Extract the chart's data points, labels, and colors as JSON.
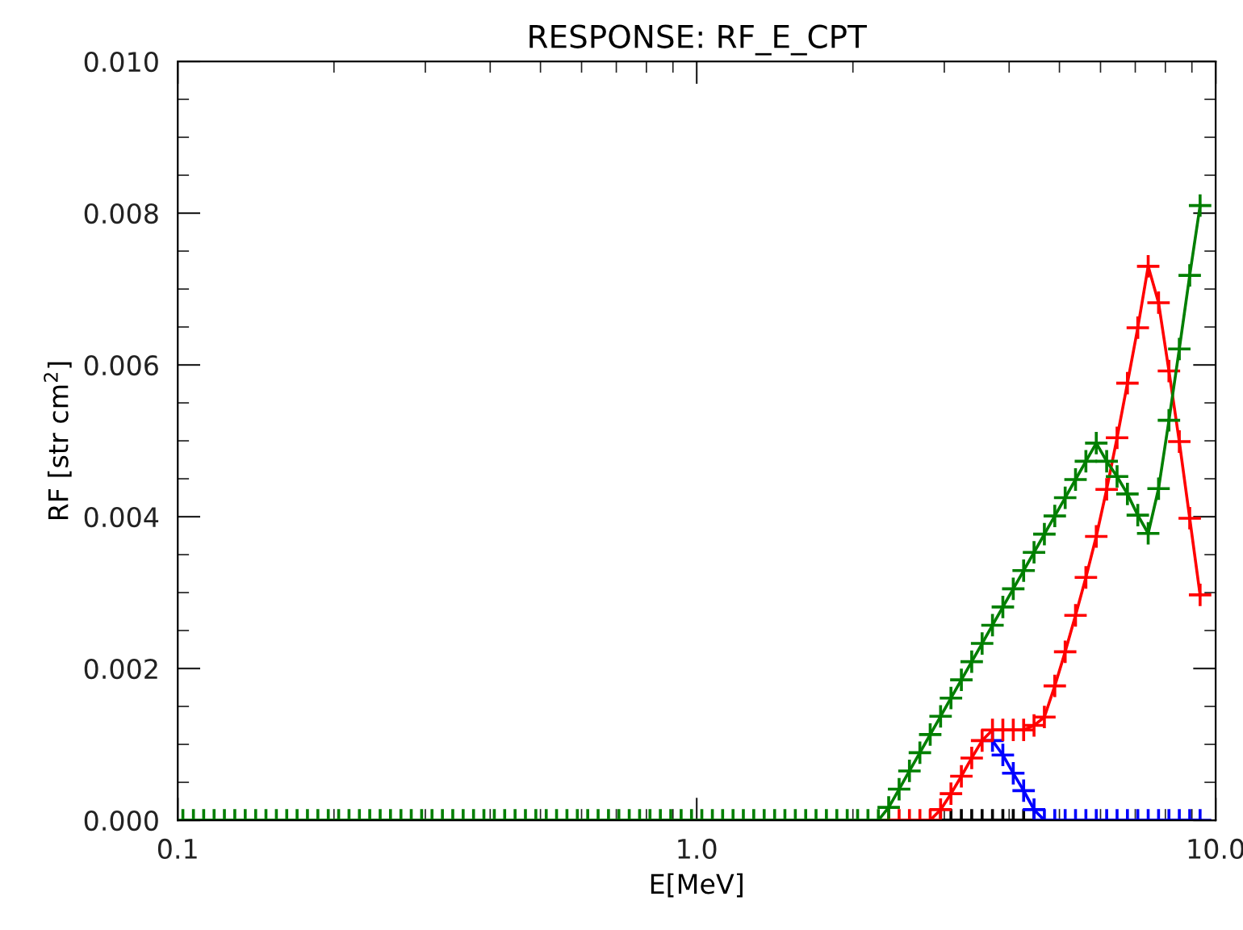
{
  "chart_data": {
    "type": "line",
    "title": "RESPONSE: RF_E_CPT",
    "xlabel": "E[MeV]",
    "ylabel": "RF [str cm$^{2}$]",
    "log": "x",
    "marker": "cross",
    "line_style": "solid",
    "grid": false,
    "legend": false,
    "xlim": [
      0.1,
      10
    ],
    "xticks": [
      {
        "value": 0.1,
        "label": "0.1"
      },
      {
        "value": 0.2,
        "label": null
      },
      {
        "value": 0.3,
        "label": null
      },
      {
        "value": 0.4,
        "label": null
      },
      {
        "value": 0.5,
        "label": null
      },
      {
        "value": 0.6,
        "label": null
      },
      {
        "value": 0.7,
        "label": null
      },
      {
        "value": 0.8,
        "label": null
      },
      {
        "value": 0.9,
        "label": null
      },
      {
        "value": 1,
        "label": "1.0"
      },
      {
        "value": 2,
        "label": null
      },
      {
        "value": 3,
        "label": null
      },
      {
        "value": 4,
        "label": null
      },
      {
        "value": 5,
        "label": null
      },
      {
        "value": 6,
        "label": null
      },
      {
        "value": 7,
        "label": null
      },
      {
        "value": 8,
        "label": null
      },
      {
        "value": 9,
        "label": null
      },
      {
        "value": 10,
        "label": "10.0"
      }
    ],
    "ylim": [
      0,
      0.01
    ],
    "yticks": [
      {
        "value": 0,
        "label": "0.000"
      },
      {
        "value": 0.0005,
        "label": null
      },
      {
        "value": 0.001,
        "label": null
      },
      {
        "value": 0.0015,
        "label": null
      },
      {
        "value": 0.002,
        "label": "0.002"
      },
      {
        "value": 0.0025,
        "label": null
      },
      {
        "value": 0.003,
        "label": null
      },
      {
        "value": 0.0035,
        "label": null
      },
      {
        "value": 0.004,
        "label": "0.004"
      },
      {
        "value": 0.0045,
        "label": null
      },
      {
        "value": 0.005,
        "label": null
      },
      {
        "value": 0.0055,
        "label": null
      },
      {
        "value": 0.006,
        "label": "0.006"
      },
      {
        "value": 0.0065,
        "label": null
      },
      {
        "value": 0.007,
        "label": null
      },
      {
        "value": 0.0075,
        "label": null
      },
      {
        "value": 0.008,
        "label": "0.008"
      },
      {
        "value": 0.0085,
        "label": null
      },
      {
        "value": 0.009,
        "label": null
      },
      {
        "value": 0.0095,
        "label": null
      },
      {
        "value": 0.01,
        "label": "0.010"
      }
    ],
    "x": [
      0.1023,
      0.1072,
      0.1122,
      0.1175,
      0.123,
      0.1288,
      0.1349,
      0.1413,
      0.1479,
      0.1549,
      0.1622,
      0.1698,
      0.1778,
      0.1862,
      0.195,
      0.2042,
      0.2138,
      0.2239,
      0.2344,
      0.2455,
      0.257,
      0.2692,
      0.2818,
      0.2951,
      0.309,
      0.3236,
      0.3388,
      0.3548,
      0.3715,
      0.389,
      0.4074,
      0.4266,
      0.4467,
      0.4677,
      0.4898,
      0.5129,
      0.537,
      0.5623,
      0.5888,
      0.6166,
      0.6457,
      0.6761,
      0.7079,
      0.7413,
      0.7762,
      0.8128,
      0.8511,
      0.8913,
      0.9333,
      0.9772,
      1.023,
      1.072,
      1.122,
      1.175,
      1.23,
      1.288,
      1.349,
      1.413,
      1.479,
      1.549,
      1.622,
      1.698,
      1.778,
      1.862,
      1.95,
      2.042,
      2.138,
      2.239,
      2.344,
      2.455,
      2.57,
      2.692,
      2.818,
      2.951,
      3.09,
      3.236,
      3.388,
      3.548,
      3.715,
      3.89,
      4.074,
      4.266,
      4.467,
      4.677,
      4.898,
      5.129,
      5.37,
      5.623,
      5.888,
      6.166,
      6.457,
      6.761,
      7.079,
      7.413,
      7.762,
      8.128,
      8.511,
      8.913,
      9.333
    ],
    "series": [
      {
        "color": "#000000",
        "values": [
          null,
          null,
          null,
          null,
          null,
          null,
          null,
          null,
          null,
          null,
          null,
          null,
          null,
          null,
          null,
          null,
          null,
          null,
          null,
          null,
          null,
          null,
          null,
          null,
          null,
          null,
          null,
          null,
          null,
          null,
          null,
          null,
          null,
          null,
          null,
          null,
          null,
          null,
          null,
          null,
          null,
          null,
          null,
          null,
          null,
          null,
          null,
          null,
          null,
          null,
          null,
          null,
          null,
          null,
          null,
          null,
          null,
          null,
          null,
          null,
          null,
          null,
          null,
          null,
          null,
          null,
          null,
          null,
          null,
          null,
          null,
          null,
          null,
          0,
          0,
          0,
          0,
          0,
          0,
          0,
          0,
          0,
          0,
          null,
          null,
          null,
          null,
          null,
          null,
          null,
          null,
          null,
          null,
          null,
          null,
          null,
          null,
          null,
          null
        ]
      },
      {
        "color": "#0000ff",
        "values": [
          null,
          null,
          null,
          null,
          null,
          null,
          null,
          null,
          null,
          null,
          null,
          null,
          null,
          null,
          null,
          null,
          null,
          null,
          null,
          null,
          null,
          null,
          null,
          null,
          null,
          null,
          null,
          null,
          null,
          null,
          null,
          null,
          null,
          null,
          null,
          null,
          null,
          null,
          null,
          null,
          null,
          null,
          null,
          null,
          null,
          null,
          null,
          null,
          null,
          null,
          null,
          null,
          null,
          null,
          null,
          null,
          null,
          null,
          null,
          null,
          null,
          null,
          null,
          null,
          null,
          null,
          null,
          null,
          null,
          null,
          null,
          null,
          null,
          null,
          null,
          null,
          null,
          null,
          0.00105,
          0.00086,
          0.00062,
          0.00039,
          0.00014,
          0,
          0,
          0,
          0,
          0,
          0,
          0,
          0,
          0,
          0,
          0,
          0,
          0,
          0,
          0,
          0
        ]
      },
      {
        "color": "#ff0000",
        "values": [
          null,
          null,
          null,
          null,
          null,
          null,
          null,
          null,
          null,
          null,
          null,
          null,
          null,
          null,
          null,
          null,
          null,
          null,
          null,
          null,
          null,
          null,
          null,
          null,
          null,
          null,
          null,
          null,
          null,
          null,
          null,
          null,
          null,
          null,
          null,
          null,
          null,
          null,
          null,
          null,
          null,
          null,
          null,
          null,
          null,
          null,
          null,
          null,
          null,
          null,
          null,
          null,
          null,
          null,
          null,
          null,
          null,
          null,
          null,
          null,
          null,
          null,
          null,
          null,
          null,
          null,
          null,
          null,
          0,
          0,
          0,
          0,
          0,
          0.00014,
          0.00035,
          0.00058,
          0.00082,
          0.00105,
          0.00119,
          0.00119,
          0.00119,
          0.00119,
          0.00125,
          0.00136,
          0.00177,
          0.00222,
          0.0027,
          0.0032,
          0.00374,
          0.00436,
          0.00504,
          0.00576,
          0.00649,
          0.0073,
          0.00682,
          0.00592,
          0.00499,
          0.00398,
          0.00297
        ]
      },
      {
        "color": "#007f00",
        "values": [
          0,
          0,
          0,
          0,
          0,
          0,
          0,
          0,
          0,
          0,
          0,
          0,
          0,
          0,
          0,
          0,
          0,
          0,
          0,
          0,
          0,
          0,
          0,
          0,
          0,
          0,
          0,
          0,
          0,
          0,
          0,
          0,
          0,
          0,
          0,
          0,
          0,
          0,
          0,
          0,
          0,
          0,
          0,
          0,
          0,
          0,
          0,
          0,
          0,
          0,
          0,
          0,
          0,
          0,
          0,
          0,
          0,
          0,
          0,
          0,
          0,
          0,
          0,
          0,
          0,
          0,
          0,
          0,
          0.00017,
          0.00041,
          0.00065,
          0.00089,
          0.00113,
          0.00137,
          0.00161,
          0.00185,
          0.00209,
          0.00233,
          0.00257,
          0.00281,
          0.00305,
          0.00329,
          0.00353,
          0.00377,
          0.00401,
          0.00425,
          0.00449,
          0.00473,
          0.00497,
          0.00473,
          0.00453,
          0.0043,
          0.00402,
          0.00378,
          0.00437,
          0.00527,
          0.00621,
          0.00718,
          0.0081
        ]
      }
    ]
  }
}
